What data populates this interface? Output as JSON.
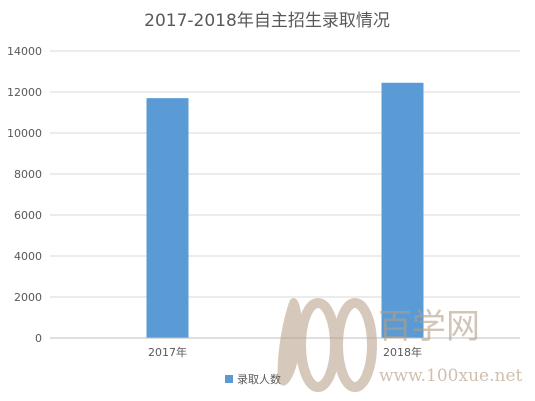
{
  "chart_data": {
    "type": "bar",
    "title": "2017-2018年自主招生录取情况",
    "categories": [
      "2017年",
      "2018年"
    ],
    "series": [
      {
        "name": "录取人数",
        "values": [
          11700,
          12450
        ]
      }
    ],
    "ylim": [
      0,
      14000
    ],
    "yticks": [
      0,
      2000,
      4000,
      6000,
      8000,
      10000,
      12000,
      14000
    ],
    "grid": true,
    "legend_position": "bottom",
    "colors": {
      "bar": "#5b9bd5",
      "grid": "#d9d9d9",
      "axis": "#bfbfbf",
      "text": "#595959"
    }
  },
  "watermark": {
    "logo_digits": "100",
    "name": "百学网",
    "url": "www.100xue.net",
    "color": "#b69e85"
  }
}
